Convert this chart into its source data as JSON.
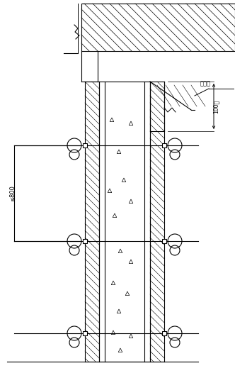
{
  "bg_color": "#ffffff",
  "line_color": "#000000",
  "label_jinliakou": "进料口",
  "label_800": "≤800",
  "label_100": "100抡",
  "fig_width": 3.32,
  "fig_height": 5.26,
  "dpi": 100
}
